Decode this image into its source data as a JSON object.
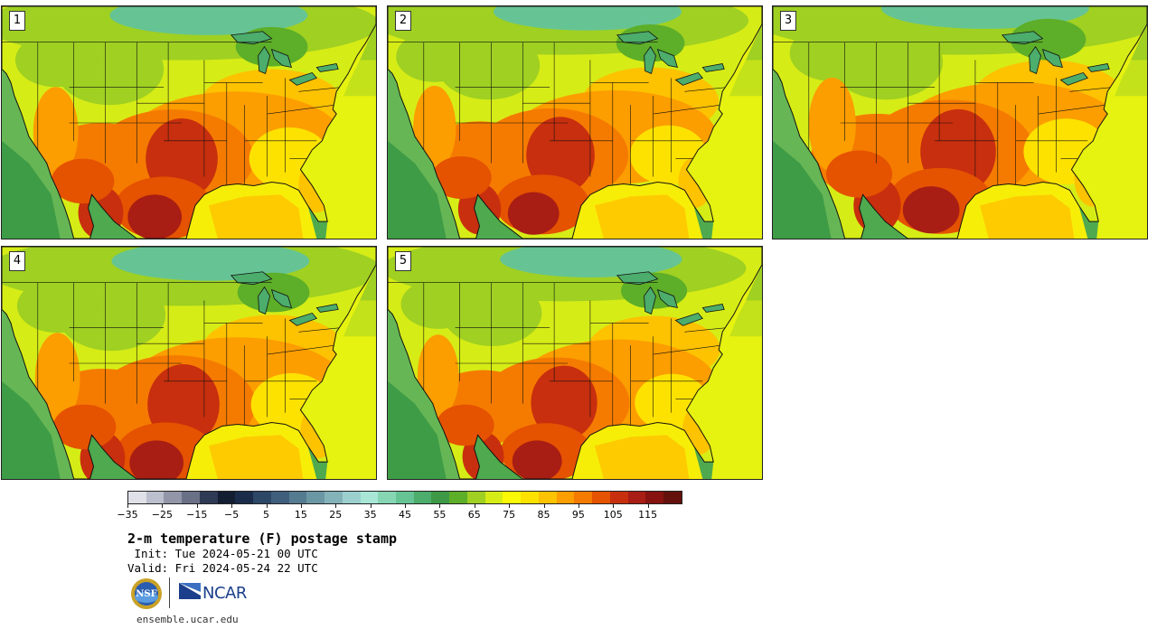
{
  "panels": [
    {
      "label": "1"
    },
    {
      "label": "2"
    },
    {
      "label": "3"
    },
    {
      "label": "4"
    },
    {
      "label": "5"
    }
  ],
  "colorbar": {
    "tick_labels": [
      "−35",
      "−25",
      "−15",
      "−5",
      "5",
      "15",
      "25",
      "35",
      "45",
      "55",
      "65",
      "75",
      "85",
      "95",
      "105",
      "115"
    ],
    "tick_values": [
      -35,
      -25,
      -15,
      -5,
      5,
      15,
      25,
      35,
      45,
      55,
      65,
      75,
      85,
      95,
      105,
      115
    ],
    "range": [
      -35,
      125
    ],
    "colors": [
      "#dfe0e8",
      "#bcbfcd",
      "#9296a8",
      "#6a7187",
      "#2f3a55",
      "#141e33",
      "#1a2c4a",
      "#2d4766",
      "#3f5f7c",
      "#557b90",
      "#6b97a4",
      "#83b3b9",
      "#9bd0cf",
      "#a8e6d6",
      "#86d6b4",
      "#66c494",
      "#4cad6c",
      "#3d9946",
      "#5dae28",
      "#9fd022",
      "#d6ec16",
      "#fafa06",
      "#fde200",
      "#fdc200",
      "#fc9d00",
      "#f57b00",
      "#e55200",
      "#c82f0e",
      "#a81d14",
      "#86130f",
      "#64110d"
    ]
  },
  "title": "2-m temperature (F) postage stamp",
  "init": " Init: Tue 2024-05-21 00 UTC",
  "valid": "Valid: Fri 2024-05-24 22 UTC",
  "logos": {
    "nsf_text": "NSF",
    "ncar_text": "NCAR"
  },
  "url": "ensemble.ucar.edu"
}
